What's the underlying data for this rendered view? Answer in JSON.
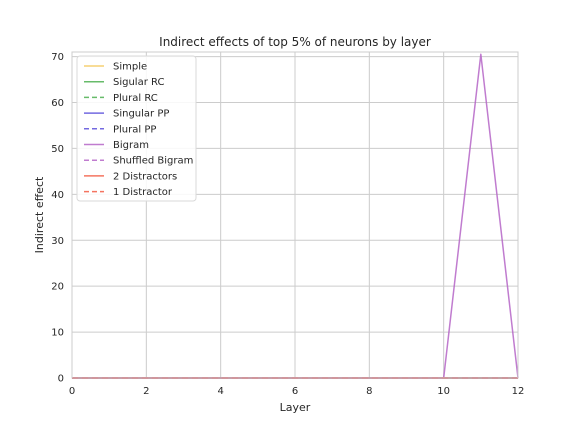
{
  "chart_data": {
    "type": "line",
    "title": "Indirect effects of top 5% of neurons by layer",
    "xlabel": "Layer",
    "ylabel": "Indirect effect",
    "x": [
      0,
      1,
      2,
      3,
      4,
      5,
      6,
      7,
      8,
      9,
      10,
      11,
      12
    ],
    "xlim": [
      0,
      12
    ],
    "ylim": [
      0,
      71
    ],
    "xticks": [
      0,
      2,
      4,
      6,
      8,
      10,
      12
    ],
    "yticks": [
      0,
      10,
      20,
      30,
      40,
      50,
      60,
      70
    ],
    "grid": true,
    "legend_position": "upper-left",
    "series": [
      {
        "name": "Simple",
        "color": "#f4c85a",
        "dash": "solid",
        "values": [
          0,
          0,
          0,
          0,
          0,
          0,
          0,
          0,
          0,
          0,
          0,
          0,
          0
        ]
      },
      {
        "name": "Sigular RC",
        "color": "#4caf50",
        "dash": "solid",
        "values": [
          0,
          0,
          0,
          0,
          0,
          0,
          0,
          0,
          0,
          0,
          0,
          0,
          0
        ]
      },
      {
        "name": "Plural RC",
        "color": "#4caf50",
        "dash": "dashed",
        "values": [
          0,
          0,
          0,
          0,
          0,
          0,
          0,
          0,
          0,
          0,
          0,
          0,
          0
        ]
      },
      {
        "name": "Singular PP",
        "color": "#5b4fdb",
        "dash": "solid",
        "values": [
          0,
          0,
          0,
          0,
          0,
          0,
          0,
          0,
          0,
          0,
          0,
          0,
          0
        ]
      },
      {
        "name": "Plural PP",
        "color": "#5b4fdb",
        "dash": "dashed",
        "values": [
          0,
          0,
          0,
          0,
          0,
          0,
          0,
          0,
          0,
          0,
          0,
          0,
          0
        ]
      },
      {
        "name": "Bigram",
        "color": "#b565c7",
        "dash": "solid",
        "values": [
          0,
          0,
          0,
          0,
          0,
          0,
          0,
          0,
          0,
          0,
          0,
          70.5,
          0
        ]
      },
      {
        "name": "Shuffled Bigram",
        "color": "#b565c7",
        "dash": "dashed",
        "values": [
          0,
          0,
          0,
          0,
          0,
          0,
          0,
          0,
          0,
          0,
          0,
          0,
          0
        ]
      },
      {
        "name": "2 Distractors",
        "color": "#f25c44",
        "dash": "solid",
        "values": [
          0,
          0,
          0,
          0,
          0,
          0,
          0,
          0,
          0,
          0,
          0,
          0,
          0
        ]
      },
      {
        "name": "1 Distractor",
        "color": "#f25c44",
        "dash": "dashed",
        "values": [
          0,
          0,
          0,
          0,
          0,
          0,
          0,
          0,
          0,
          0,
          0,
          0,
          0
        ]
      }
    ]
  }
}
